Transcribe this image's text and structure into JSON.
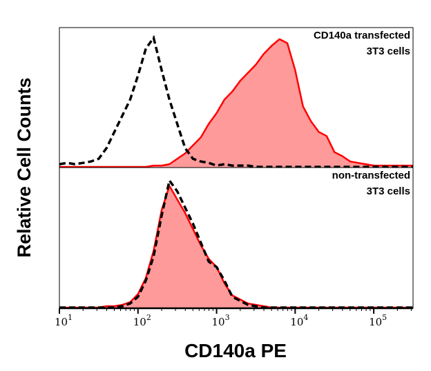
{
  "chart_data": {
    "type": "area",
    "xlabel": "CD140a PE",
    "ylabel": "Relative Cell Counts",
    "xscale": "log",
    "xlim": [
      10,
      316228
    ],
    "ylim": [
      0,
      100
    ],
    "grid": false,
    "x_tick_labels": [
      {
        "base": "10",
        "exp": "1",
        "value": 10
      },
      {
        "base": "10",
        "exp": "2",
        "value": 100
      },
      {
        "base": "10",
        "exp": "3",
        "value": 1000
      },
      {
        "base": "10",
        "exp": "4",
        "value": 10000
      },
      {
        "base": "10",
        "exp": "5",
        "value": 100000
      }
    ],
    "x": [
      10,
      12.6,
      15.8,
      20,
      25.1,
      31.6,
      39.8,
      50.1,
      63.1,
      79.4,
      100,
      126,
      158,
      200,
      251,
      316,
      398,
      501,
      631,
      794,
      1000,
      1259,
      1585,
      1995,
      2512,
      3162,
      3981,
      5012,
      6310,
      7943,
      10000,
      12589,
      15849,
      19953,
      25119,
      31623,
      39811,
      50119,
      63096,
      79433,
      100000,
      125893,
      158489,
      199526,
      251189,
      316228
    ],
    "panels": [
      {
        "annotation": [
          "CD140a transfected",
          "3T3 cells"
        ],
        "series": [
          {
            "style": "filled",
            "color": "#ff0000",
            "fill": "#ff9a9a",
            "values": [
              0,
              0,
              0,
              0,
              0,
              0,
              0,
              0,
              0,
              0,
              0,
              0,
              1,
              1,
              2,
              6,
              10,
              16,
              22,
              32,
              40,
              50,
              56,
              64,
              70,
              76,
              84,
              90,
              95,
              92,
              72,
              45,
              34,
              26,
              23,
              11,
              8,
              4,
              3,
              2,
              1,
              1,
              1,
              1,
              1,
              1
            ]
          },
          {
            "style": "dashed",
            "color": "#000000",
            "values": [
              2,
              3,
              2,
              3,
              4,
              6,
              14,
              26,
              38,
              50,
              68,
              88,
              96,
              72,
              50,
              32,
              14,
              6,
              4,
              3,
              1,
              2,
              1,
              1,
              1,
              0,
              0,
              0,
              0,
              0,
              0,
              0,
              0,
              0,
              0,
              0,
              0,
              0,
              0,
              0,
              0,
              0,
              0,
              0,
              0,
              0
            ]
          }
        ]
      },
      {
        "annotation": [
          "non-transfected",
          "3T3 cells"
        ],
        "series": [
          {
            "style": "filled",
            "color": "#ff0000",
            "fill": "#ff9a9a",
            "values": [
              0,
              0,
              0,
              0,
              0,
              0,
              1,
              1,
              2,
              4,
              10,
              22,
              42,
              72,
              90,
              80,
              70,
              58,
              46,
              36,
              30,
              18,
              9,
              6,
              3,
              2,
              1,
              0,
              0,
              0,
              0,
              0,
              0,
              0,
              0,
              0,
              0,
              0,
              0,
              0,
              0,
              0,
              0,
              0,
              0,
              0
            ]
          },
          {
            "style": "dashed",
            "color": "#000000",
            "values": [
              0,
              0,
              0,
              0,
              0,
              0,
              0,
              0,
              1,
              3,
              8,
              20,
              38,
              68,
              94,
              86,
              74,
              62,
              48,
              34,
              30,
              20,
              8,
              5,
              2,
              1,
              0,
              0,
              0,
              0,
              0,
              0,
              0,
              0,
              0,
              0,
              0,
              0,
              0,
              0,
              0,
              0,
              0,
              0,
              0,
              0
            ]
          }
        ]
      }
    ]
  }
}
